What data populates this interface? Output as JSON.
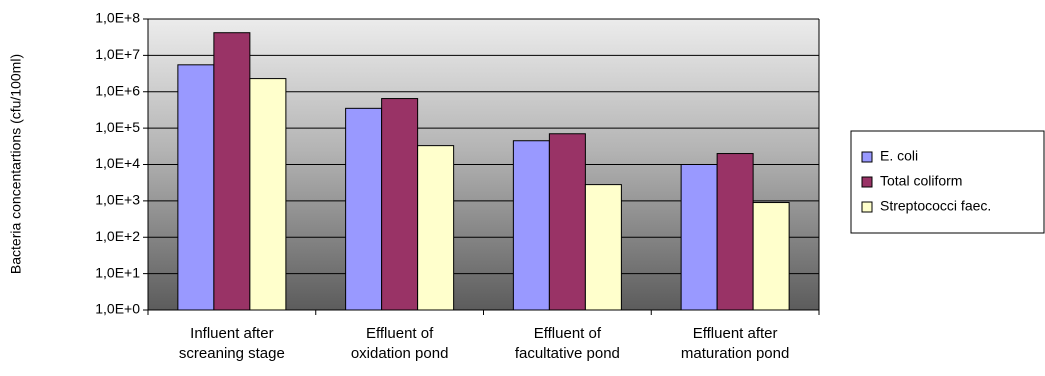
{
  "chart_data": {
    "type": "bar",
    "title": "",
    "xlabel": "",
    "ylabel": "Bacteria concentartions (cfu/100ml)",
    "yscale": "log10",
    "ylim": [
      1,
      100000000
    ],
    "yticks": [
      1,
      10,
      100,
      1000,
      10000,
      100000,
      1000000,
      10000000,
      100000000
    ],
    "ytick_labels": [
      "1,0E+0",
      "1,0E+1",
      "1,0E+2",
      "1,0E+3",
      "1,0E+4",
      "1,0E+5",
      "1,0E+6",
      "1,0E+7",
      "1,0E+8"
    ],
    "categories": [
      [
        "Influent after",
        "screaning stage"
      ],
      [
        "Effluent of",
        "oxidation pond"
      ],
      [
        "Effluent of",
        "facultative pond"
      ],
      [
        "Effluent after",
        "maturation pond"
      ]
    ],
    "series": [
      {
        "name": "E. coli",
        "color": "#9999ff",
        "values": [
          5500000,
          350000,
          45000,
          10000
        ]
      },
      {
        "name": "Total coliform",
        "color": "#993366",
        "values": [
          42000000,
          650000,
          70000,
          20000
        ]
      },
      {
        "name": "Streptococci faec.",
        "color": "#ffffcc",
        "values": [
          2300000,
          33000,
          2800,
          900
        ]
      }
    ],
    "grid": true,
    "legend_position": "right",
    "plot_background": "gray-gradient"
  }
}
